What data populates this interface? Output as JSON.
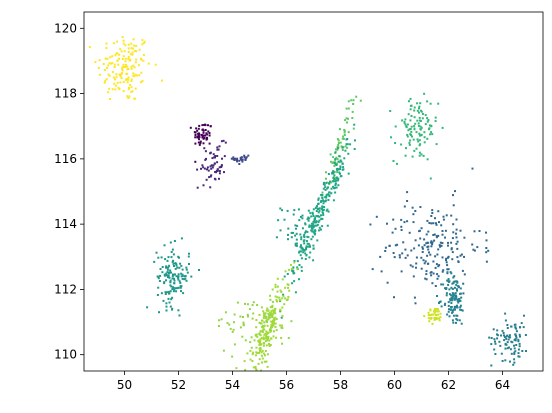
{
  "chart_data": {
    "type": "scatter",
    "title": "",
    "xlabel": "",
    "ylabel": "",
    "xlim": [
      48.5,
      65.5
    ],
    "ylim": [
      109.5,
      120.5
    ],
    "grid": false,
    "legend": "none",
    "xticks": [
      50,
      52,
      54,
      56,
      58,
      60,
      62,
      64
    ],
    "yticks": [
      110,
      112,
      114,
      116,
      118,
      120
    ],
    "xtick_labels": [
      "50",
      "52",
      "54",
      "56",
      "58",
      "60",
      "62",
      "64"
    ],
    "ytick_labels": [
      "110",
      "112",
      "114",
      "116",
      "118",
      "120"
    ],
    "clusters": [
      {
        "color": "#fde725",
        "center": [
          50.0,
          118.8
        ],
        "spread": [
          0.5,
          0.55
        ],
        "rotation": 0,
        "count": 150
      },
      {
        "color": "#440154",
        "center": [
          52.9,
          116.75
        ],
        "spread": [
          0.18,
          0.2
        ],
        "rotation": 0,
        "count": 55
      },
      {
        "color": "#482878",
        "center": [
          53.25,
          115.8
        ],
        "spread": [
          0.2,
          0.35
        ],
        "rotation": -0.3,
        "count": 60
      },
      {
        "color": "#3e4989",
        "center": [
          54.35,
          116.0
        ],
        "spread": [
          0.15,
          0.1
        ],
        "rotation": 0,
        "count": 25
      },
      {
        "color": "#5ec962",
        "center": [
          58.0,
          116.4
        ],
        "spread": [
          0.12,
          0.8
        ],
        "rotation": -0.35,
        "count": 70
      },
      {
        "color": "#21a685",
        "center": [
          57.2,
          114.3
        ],
        "spread": [
          0.15,
          1.2
        ],
        "rotation": -0.45,
        "count": 260
      },
      {
        "color": "#1f9e89",
        "center": [
          56.4,
          113.9
        ],
        "spread": [
          0.3,
          0.35
        ],
        "rotation": 0,
        "count": 40
      },
      {
        "color": "#35b779",
        "center": [
          60.8,
          116.9
        ],
        "spread": [
          0.4,
          0.5
        ],
        "rotation": 0,
        "count": 110
      },
      {
        "color": "#31688e",
        "center": [
          61.4,
          113.3
        ],
        "spread": [
          0.9,
          0.7
        ],
        "rotation": 0,
        "count": 200
      },
      {
        "color": "#26828e",
        "center": [
          62.2,
          111.7
        ],
        "spread": [
          0.2,
          0.4
        ],
        "rotation": 0,
        "count": 110
      },
      {
        "color": "#cde11d",
        "center": [
          61.5,
          111.2
        ],
        "spread": [
          0.15,
          0.12
        ],
        "rotation": 0,
        "count": 40
      },
      {
        "color": "#277f8e",
        "center": [
          64.3,
          110.5
        ],
        "spread": [
          0.35,
          0.35
        ],
        "rotation": 0,
        "count": 90
      },
      {
        "color": "#1f988b",
        "center": [
          51.8,
          112.4
        ],
        "spread": [
          0.3,
          0.45
        ],
        "rotation": 0,
        "count": 140
      },
      {
        "color": "#a0da39",
        "center": [
          55.3,
          110.8
        ],
        "spread": [
          0.2,
          0.85
        ],
        "rotation": -0.4,
        "count": 220
      },
      {
        "color": "#90d743",
        "center": [
          54.8,
          111.0
        ],
        "spread": [
          0.7,
          0.4
        ],
        "rotation": 0,
        "count": 60
      }
    ]
  }
}
